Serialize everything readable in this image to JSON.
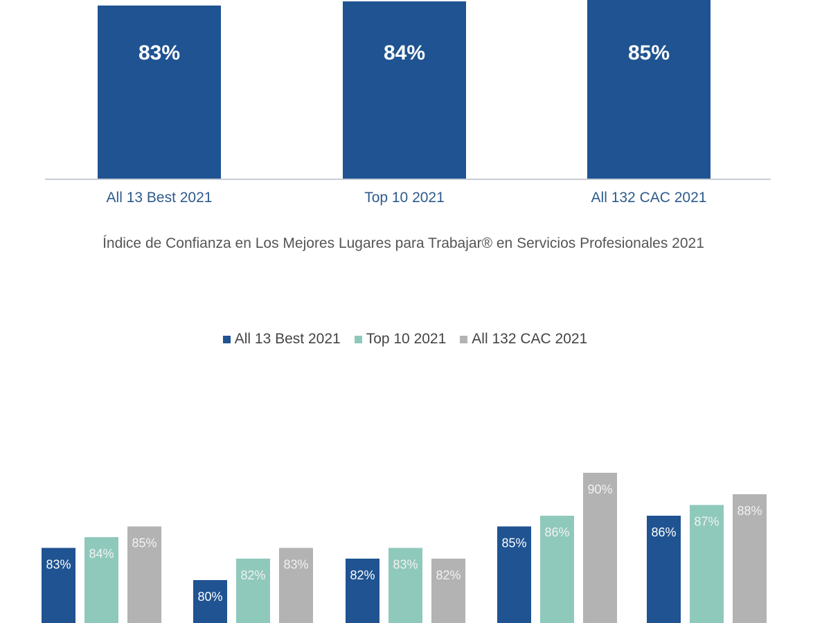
{
  "colors": {
    "blue": "#1f5391",
    "teal": "#8fc9bb",
    "gray": "#b3b3b3",
    "axis": "#c8ccd4",
    "category_text": "#2e5a8c"
  },
  "caption": "Índice de Confianza en Los Mejores Lugares para Trabajar® en Servicios Profesionales 2021",
  "chart_data": [
    {
      "type": "bar",
      "categories": [
        "All 13 Best 2021",
        "Top 10 2021",
        "All 132 CAC 2021"
      ],
      "values": [
        83,
        84,
        85
      ],
      "labels": [
        "83%",
        "84%",
        "85%"
      ],
      "title": "",
      "xlabel": "",
      "ylabel": "",
      "grid": false
    },
    {
      "type": "bar",
      "categories": [
        "",
        "",
        "",
        "",
        ""
      ],
      "series": [
        {
          "name": "All 13 Best 2021",
          "values": [
            83,
            80,
            82,
            85,
            86
          ],
          "labels": [
            "83%",
            "80%",
            "82%",
            "85%",
            "86%"
          ]
        },
        {
          "name": "Top 10 2021",
          "values": [
            84,
            82,
            83,
            86,
            87
          ],
          "labels": [
            "84%",
            "82%",
            "83%",
            "86%",
            "87%"
          ]
        },
        {
          "name": "All 132 CAC 2021",
          "values": [
            85,
            83,
            82,
            90,
            88
          ],
          "labels": [
            "85%",
            "83%",
            "82%",
            "90%",
            "88%"
          ]
        }
      ],
      "title": "",
      "legend": "top",
      "grid": false
    }
  ]
}
